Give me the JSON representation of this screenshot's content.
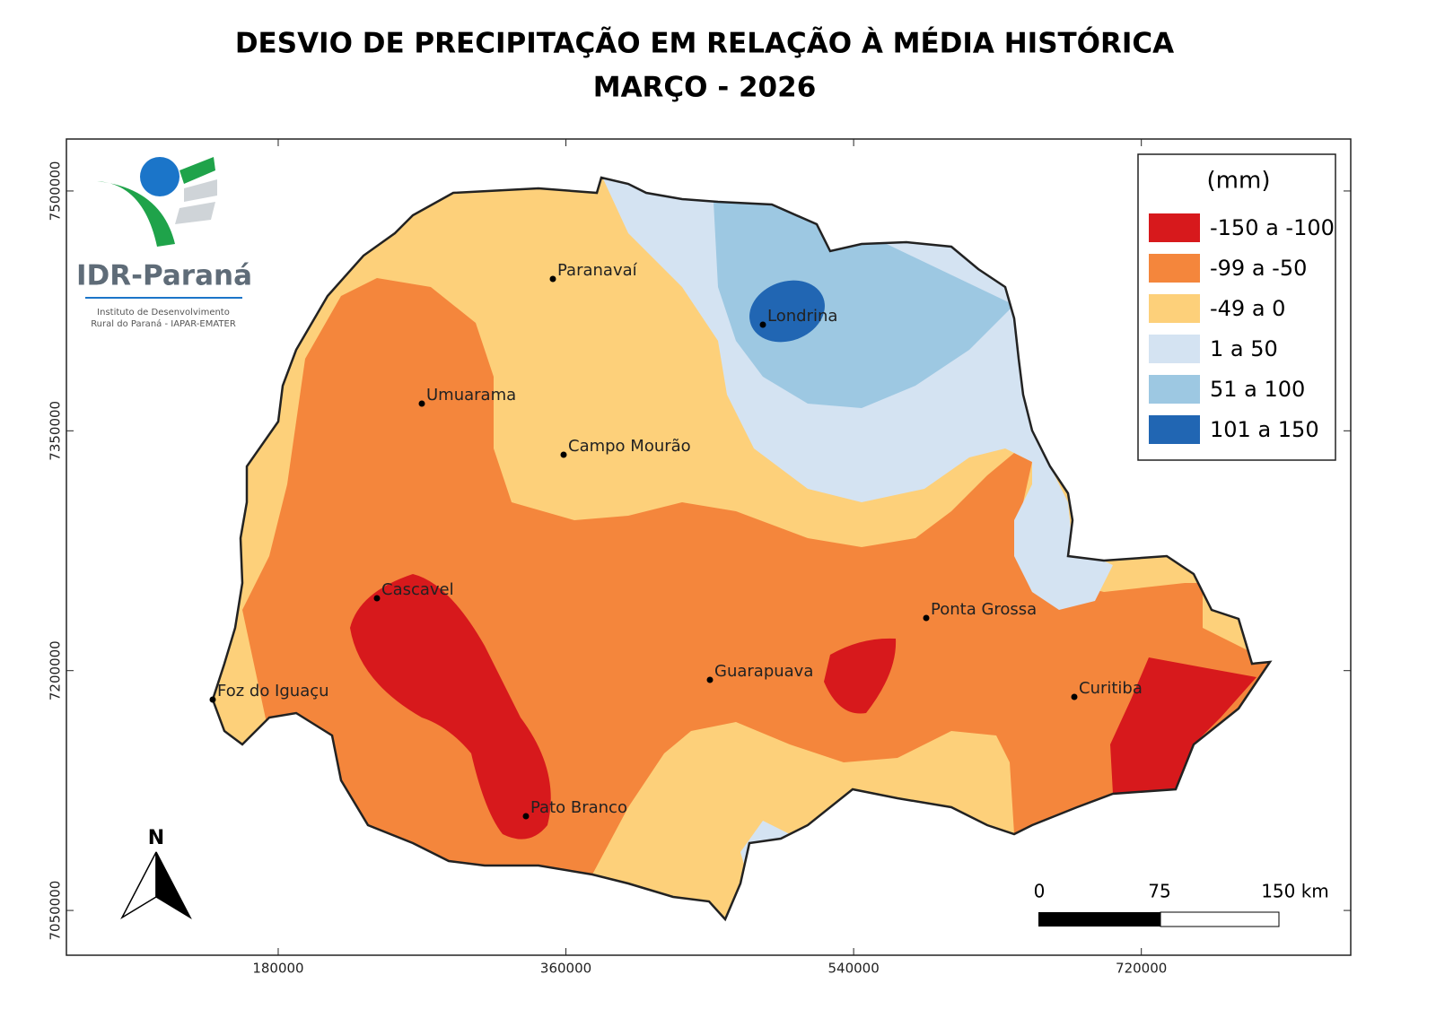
{
  "header": {
    "title": "DESVIO DE PRECIPITAÇÃO EM RELAÇÃO À MÉDIA HISTÓRICA",
    "subtitle": "MARÇO - 2026"
  },
  "logo": {
    "name": "IDR-Paraná",
    "line1": "Instituto de Desenvolvimento",
    "line2": "Rural do Paraná - IAPAR-EMATER"
  },
  "map": {
    "xlim": [
      47500,
      851000
    ],
    "ylim": [
      7022000,
      7532500
    ],
    "xticks": [
      180000,
      360000,
      540000,
      720000
    ],
    "yticks": [
      7050000,
      7200000,
      7350000,
      7500000
    ],
    "cities": [
      "Paranavaí",
      "Londrina",
      "Umuarama",
      "Campo Mourão",
      "Cascavel",
      "Ponta Grossa",
      "Guarapuava",
      "Curitiba",
      "Foz do Iguaçu",
      "Pato Branco"
    ]
  },
  "legend": {
    "title": "(mm)",
    "items": [
      {
        "label": "-150 a -100",
        "color": "#d7191c"
      },
      {
        "label": "-99 a -50",
        "color": "#f4863c"
      },
      {
        "label": "-49 a 0",
        "color": "#fdd07a"
      },
      {
        "label": "1 a 50",
        "color": "#d4e3f2"
      },
      {
        "label": "51 a 100",
        "color": "#9dc8e2"
      },
      {
        "label": "101 a 150",
        "color": "#2166b3"
      }
    ]
  },
  "north": "N",
  "scale_bar": {
    "labels": [
      "0",
      "75",
      "150 km"
    ]
  }
}
